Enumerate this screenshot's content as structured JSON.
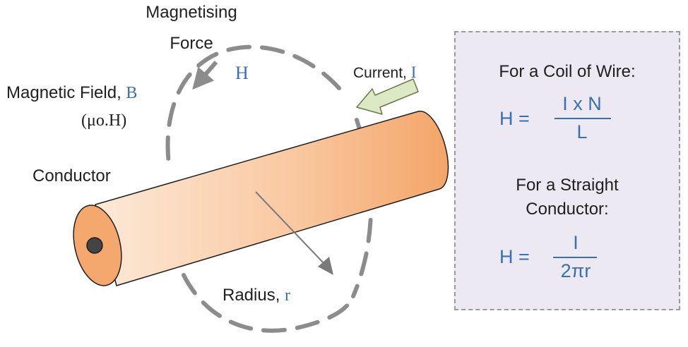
{
  "labels": {
    "magnetising_line1": "Magnetising",
    "magnetising_line2": "Force",
    "h_symbol": "H",
    "current_text": "Current, ",
    "current_symbol": "I",
    "field_text": "Magnetic Field, ",
    "field_symbol": "B",
    "field_formula": "(μo.H)",
    "conductor": "Conductor",
    "radius_text": "Radius, ",
    "radius_symbol": "r"
  },
  "formulas": {
    "coil_title": "For a Coil of Wire:",
    "coil_lhs": "H =",
    "coil_numerator": "I x N",
    "coil_denominator": "L",
    "straight_title_line1": "For a Straight",
    "straight_title_line2": "Conductor:",
    "straight_lhs": "H =",
    "straight_numerator": "I",
    "straight_denominator": "2πr"
  },
  "colors": {
    "conductor_light": "#fde6d2",
    "conductor_dark": "#f4a56a",
    "core": "#444444",
    "field_loop": "#8c8c8c",
    "current_arrow": "#dde9c4",
    "formula_blue": "#3a6fb0",
    "box_fill": "#ece9f2"
  }
}
